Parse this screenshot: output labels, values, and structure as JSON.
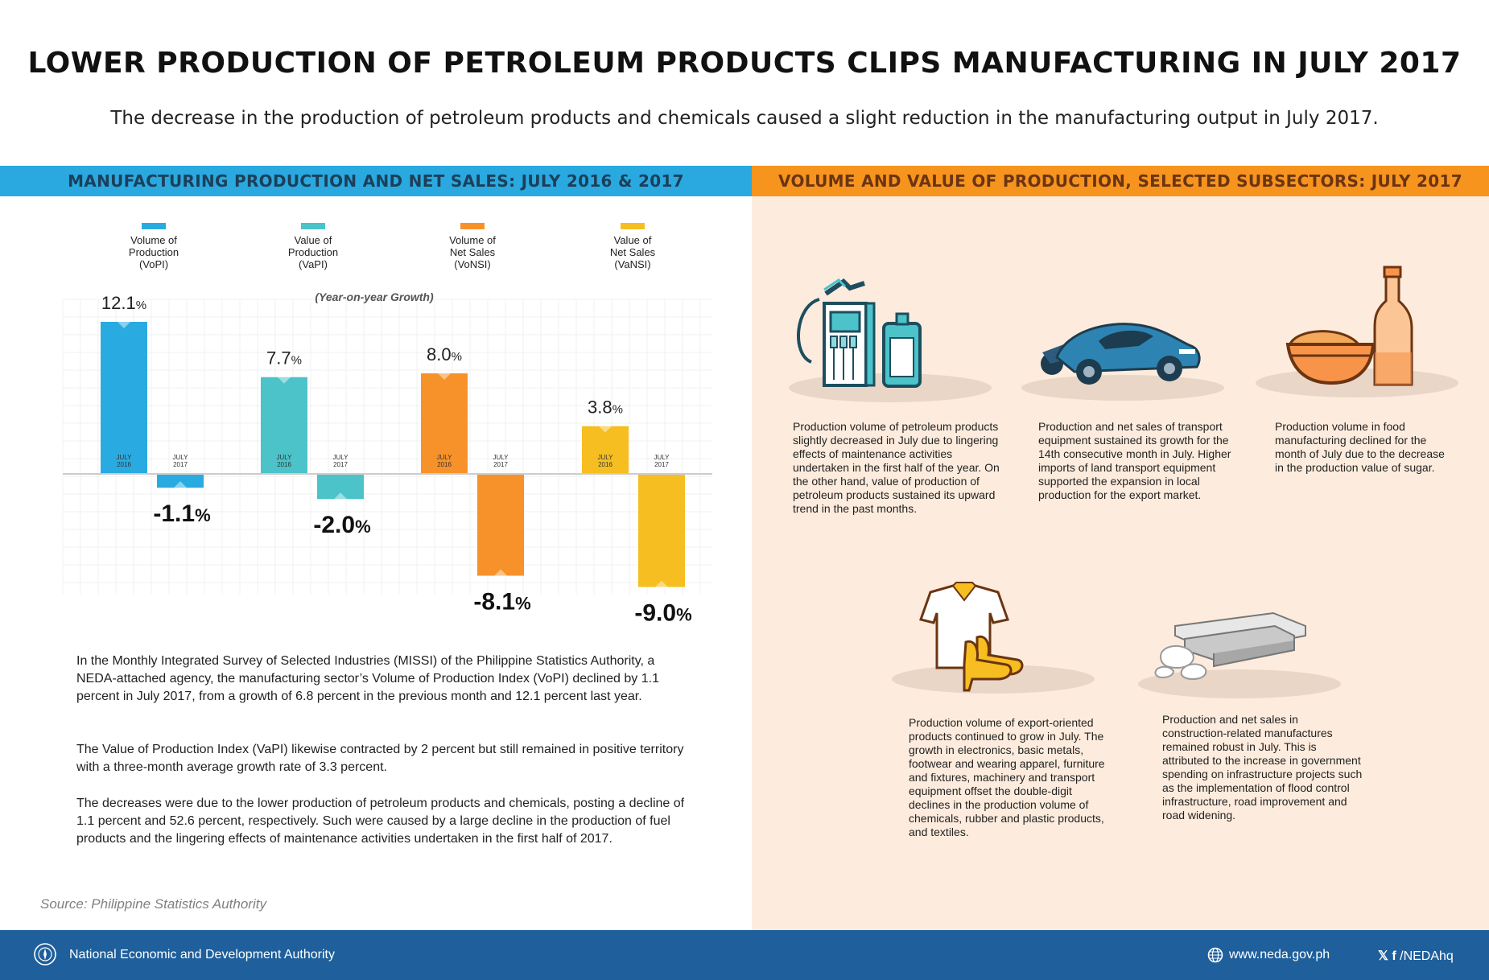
{
  "header": {
    "title": "LOWER PRODUCTION OF PETROLEUM PRODUCTS CLIPS MANUFACTURING IN JULY 2017",
    "subtitle": "The decrease in the production of petroleum products and chemicals caused a slight reduction in the manufacturing output in July 2017."
  },
  "left_section": {
    "heading": "MANUFACTURING PRODUCTION AND NET SALES: JULY 2016 & 2017",
    "paragraphs": [
      "In the Monthly Integrated Survey of Selected Industries (MISSI) of the Philippine Statistics Authority, a NEDA-attached agency, the manufacturing sector’s Volume of Production Index (VoPI) declined by 1.1 percent in July 2017, from a growth of 6.8 percent in the previous month and 12.1 percent last year.",
      "The Value of Production Index (VaPI) likewise contracted by 2 percent but still remained in positive territory with a three-month average growth rate of 3.3 percent.",
      "The decreases were due to the lower production of petroleum products and chemicals, posting a decline of 1.1 percent and 52.6 percent, respectively. Such were caused by a large decline in the production of fuel products and the lingering effects of maintenance activities undertaken in the first half of 2017."
    ],
    "source": "Source: Philippine Statistics Authority"
  },
  "chart_data": {
    "type": "bar",
    "subtitle": "(Year-on-year Growth)",
    "categories": [
      "JULY 2016",
      "JULY 2017"
    ],
    "value_suffix": "%",
    "series": [
      {
        "name": "Volume of Production (VoPI)",
        "label_lines": [
          "Volume of",
          "Production",
          "(VoPI)"
        ],
        "color": "#29abe2",
        "values": [
          12.1,
          -1.1
        ]
      },
      {
        "name": "Value of Production (VaPI)",
        "label_lines": [
          "Value of",
          "Production",
          "(VaPI)"
        ],
        "color": "#4bc3c9",
        "values": [
          7.7,
          -2.0
        ]
      },
      {
        "name": "Volume of Net Sales (VoNSI)",
        "label_lines": [
          "Volume of",
          "Net Sales",
          "(VoNSI)"
        ],
        "color": "#f7922b",
        "values": [
          8.0,
          -8.1
        ]
      },
      {
        "name": "Value of Net Sales (VaNSI)",
        "label_lines": [
          "Value of",
          "Net Sales",
          "(VaNSI)"
        ],
        "color": "#f6be20",
        "values": [
          3.8,
          -9.0
        ]
      }
    ],
    "value_labels": [
      [
        "12.1",
        "-1.1"
      ],
      [
        "7.7",
        "-2.0"
      ],
      [
        "8.0",
        "-8.1"
      ],
      [
        "3.8",
        "-9.0"
      ]
    ],
    "ylim": [
      -10,
      13
    ],
    "grid": true
  },
  "right_section": {
    "heading": "VOLUME AND VALUE OF PRODUCTION, SELECTED SUBSECTORS: JULY 2017",
    "items": [
      {
        "icon": "fuel-pump-icon",
        "text": "Production volume of petroleum products slightly decreased in July due to lingering effects of maintenance activities undertaken in the first half of the year. On the other hand, value of production of petroleum products sustained its upward trend in the past months."
      },
      {
        "icon": "car-motorcycle-icon",
        "text": "Production and net sales of transport equipment sustained its growth for the 14th consecutive month in July. Higher imports of land transport equipment supported the expansion in local production for the export market."
      },
      {
        "icon": "food-bowl-bottle-icon",
        "text": "Production volume in food manufacturing declined for the month of July due to the decrease in the production value of sugar."
      },
      {
        "icon": "shirt-shoes-icon",
        "text": "Production volume of export-oriented products continued to grow in July. The growth in electronics, basic metals, footwear and wearing apparel, furniture and fixtures, machinery and transport equipment offset the double-digit declines in the production volume of chemicals, rubber and plastic products, and textiles."
      },
      {
        "icon": "steel-beams-rocks-icon",
        "text": "Production and net sales  in construction-related manufactures remained robust in July. This is attributed to the increase in government spending on infrastructure projects such as the implementation of flood control infrastructure, road improvement and road widening."
      }
    ]
  },
  "footer": {
    "org": "National Economic and Development Authority",
    "website": "www.neda.gov.ph",
    "social": "/NEDAhq",
    "social_icons": "twitter-icon facebook-icon"
  }
}
